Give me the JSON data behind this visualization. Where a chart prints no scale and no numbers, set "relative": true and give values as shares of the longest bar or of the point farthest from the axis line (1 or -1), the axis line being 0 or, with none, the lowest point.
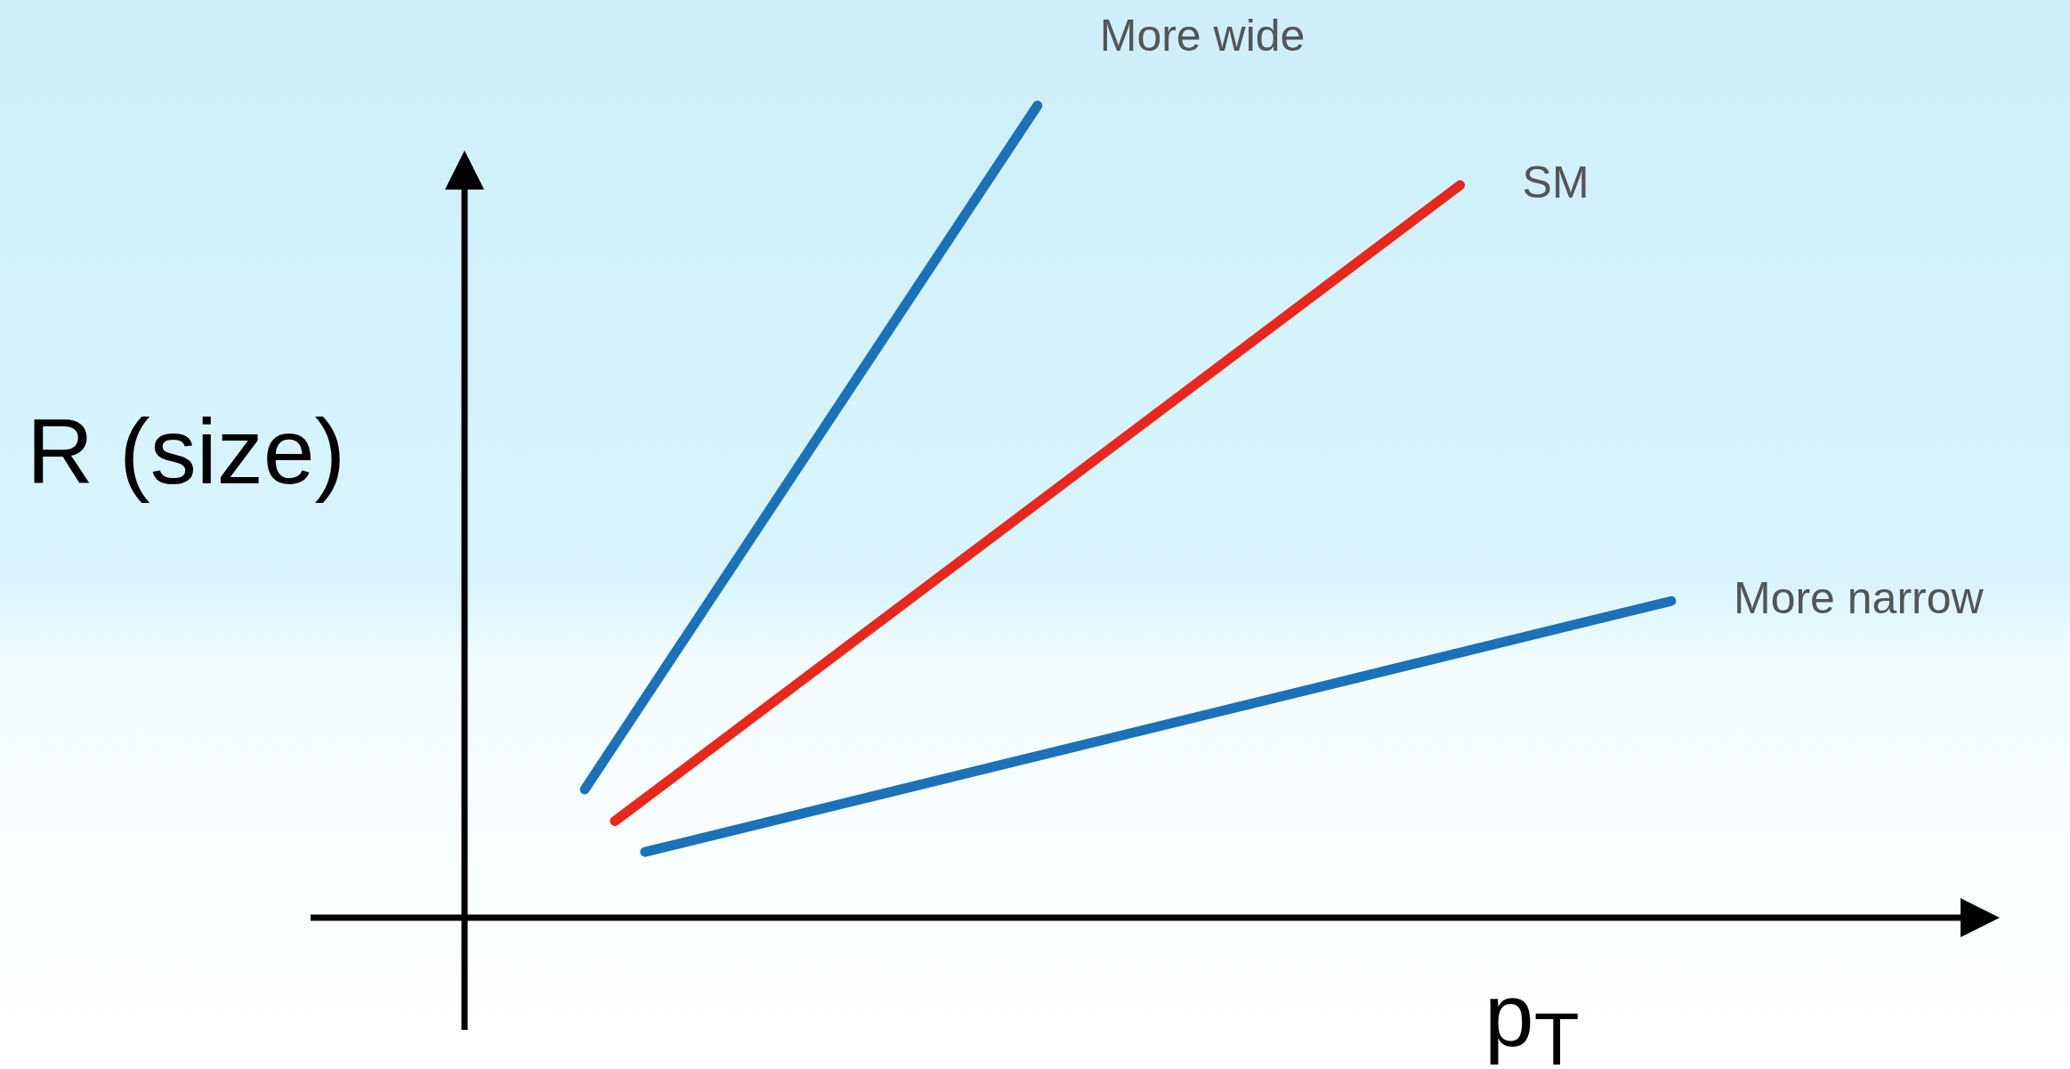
{
  "chart_data": {
    "type": "line",
    "xlabel": "p$_{T}$",
    "ylabel": "R (size)",
    "relative": true,
    "legend": false,
    "marker": "none",
    "categories": [
      null,
      null,
      null,
      null,
      null,
      null,
      null,
      null,
      null,
      null,
      null,
      null,
      null,
      null,
      null,
      null,
      null,
      null,
      null,
      null,
      null,
      null,
      null,
      null,
      null,
      null,
      null,
      null,
      null,
      null,
      null,
      null,
      null,
      null,
      null,
      null,
      null
    ],
    "series": [
      {
        "name": "More wide",
        "color": "#1b72b8",
        "values": [
          0.158,
          null,
          null,
          null,
          null,
          null,
          null,
          null,
          null,
          null,
          null,
          null,
          null,
          null,
          null,
          1,
          null,
          null,
          null,
          null,
          null,
          null,
          null,
          null,
          null,
          null,
          null,
          null,
          null,
          null,
          null,
          null,
          null,
          null,
          null,
          null,
          null
        ]
      },
      {
        "name": "SM",
        "color": "#e8281c",
        "values": [
          null,
          0.119,
          null,
          null,
          null,
          null,
          null,
          null,
          null,
          null,
          null,
          null,
          null,
          null,
          null,
          null,
          null,
          null,
          null,
          null,
          null,
          null,
          null,
          null,
          null,
          null,
          null,
          null,
          null,
          0.902,
          null,
          null,
          null,
          null,
          null,
          null,
          null
        ]
      },
      {
        "name": "More narrow",
        "color": "#1b72b8",
        "values": [
          null,
          null,
          0.081,
          null,
          null,
          null,
          null,
          null,
          null,
          null,
          null,
          null,
          null,
          null,
          null,
          null,
          null,
          null,
          null,
          null,
          null,
          null,
          null,
          null,
          null,
          null,
          null,
          null,
          null,
          null,
          null,
          null,
          null,
          null,
          null,
          null,
          0.39
        ]
      }
    ]
  }
}
